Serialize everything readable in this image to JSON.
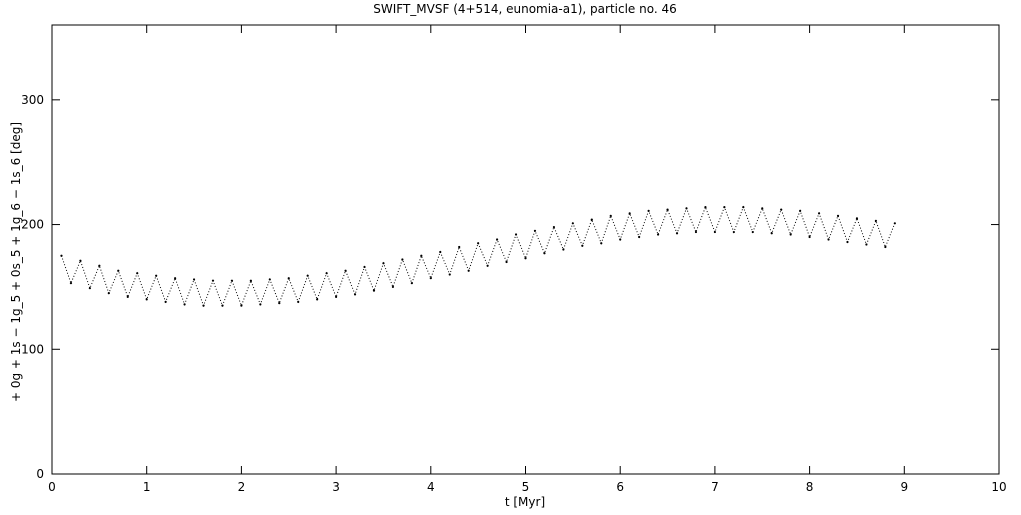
{
  "chart_data": {
    "type": "scatter",
    "title": "SWIFT_MVSF (4+514, eunomia-a1), particle no. 46",
    "xlabel": "t [Myr]",
    "ylabel": "+ 0g + 1s − 1g_5 + 0s_5 + 1g_6 − 1s_6 [deg]",
    "color": "#000000",
    "xlim": [
      0,
      10
    ],
    "ylim": [
      0,
      360
    ],
    "xticks": [
      0,
      1,
      2,
      3,
      4,
      5,
      6,
      7,
      8,
      9,
      10
    ],
    "yticks": [
      0,
      100,
      200,
      300
    ],
    "x": [
      0.1,
      0.2,
      0.3,
      0.4,
      0.5,
      0.6,
      0.7,
      0.8,
      0.9,
      1.0,
      1.1,
      1.2,
      1.3,
      1.4,
      1.5,
      1.6,
      1.7,
      1.8,
      1.9,
      2.0,
      2.1,
      2.2,
      2.3,
      2.4,
      2.5,
      2.6,
      2.7,
      2.8,
      2.9,
      3.0,
      3.1,
      3.2,
      3.3,
      3.4,
      3.5,
      3.6,
      3.7,
      3.8,
      3.9,
      4.0,
      4.1,
      4.2,
      4.3,
      4.4,
      4.5,
      4.6,
      4.7,
      4.8,
      4.9,
      5.0,
      5.1,
      5.2,
      5.3,
      5.4,
      5.5,
      5.6,
      5.7,
      5.8,
      5.9,
      6.0,
      6.1,
      6.2,
      6.3,
      6.4,
      6.5,
      6.6,
      6.7,
      6.8,
      6.9,
      7.0,
      7.1,
      7.2,
      7.3,
      7.4,
      7.5,
      7.6,
      7.7,
      7.8,
      7.9,
      8.0,
      8.1,
      8.2,
      8.3,
      8.4,
      8.5,
      8.6,
      8.7,
      8.8,
      8.9
    ],
    "values": [
      175,
      153,
      171,
      149,
      167,
      145,
      163,
      142,
      161,
      140,
      159,
      138,
      157,
      136,
      156,
      135,
      155,
      135,
      155,
      135,
      155,
      136,
      156,
      137,
      157,
      138,
      159,
      140,
      161,
      142,
      163,
      144,
      166,
      147,
      169,
      150,
      172,
      153,
      175,
      157,
      178,
      160,
      182,
      163,
      185,
      167,
      188,
      170,
      192,
      173,
      195,
      177,
      198,
      180,
      201,
      183,
      204,
      185,
      207,
      188,
      209,
      190,
      211,
      192,
      212,
      193,
      213,
      194,
      214,
      194,
      214,
      194,
      214,
      194,
      213,
      193,
      212,
      192,
      211,
      190,
      209,
      188,
      207,
      186,
      205,
      184,
      203,
      182,
      201
    ]
  }
}
